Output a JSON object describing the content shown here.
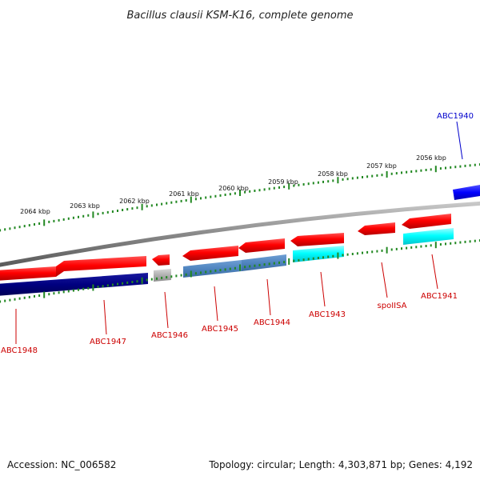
{
  "title": "Bacillus clausii KSM-K16, complete genome",
  "footer": {
    "accession": "Accession: NC_006582",
    "topology": "Topology: circular; Length: 4,303,871 bp; Genes: 4,192"
  },
  "colors": {
    "forward_gene": "#ff0000",
    "reverse_gene": "#ff0000",
    "forward_label": "#cc0000",
    "highlight_label": "#0000cc",
    "backbone": "#888888",
    "ticks": "#228822",
    "cds_navy": "#000080",
    "cds_steelblue": "#4f84bf",
    "cds_cyan": "#00ffff",
    "cds_gray": "#b0b0b0",
    "cds_blue": "#0000ff"
  },
  "ticks": [
    {
      "label": "2064 kbp",
      "kbp": 2064
    },
    {
      "label": "2063 kbp",
      "kbp": 2063
    },
    {
      "label": "2062 kbp",
      "kbp": 2062
    },
    {
      "label": "2061 kbp",
      "kbp": 2061
    },
    {
      "label": "2060 kbp",
      "kbp": 2060
    },
    {
      "label": "2059 kbp",
      "kbp": 2059
    },
    {
      "label": "2058 kbp",
      "kbp": 2058
    },
    {
      "label": "2057 kbp",
      "kbp": 2057
    },
    {
      "label": "2056 kbp",
      "kbp": 2056
    }
  ],
  "genes": [
    {
      "name": "ABC1948"
    },
    {
      "name": "ABC1947"
    },
    {
      "name": "ABC1946"
    },
    {
      "name": "ABC1945"
    },
    {
      "name": "ABC1944"
    },
    {
      "name": "ABC1943"
    },
    {
      "name": "spoIISA"
    },
    {
      "name": "ABC1941"
    },
    {
      "name": "ABC1940"
    }
  ]
}
